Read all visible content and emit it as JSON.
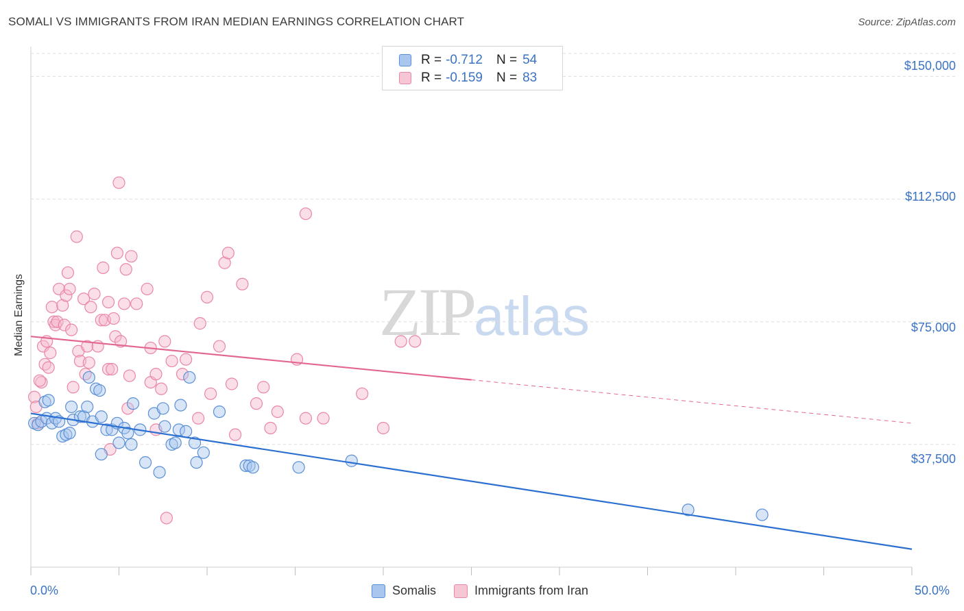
{
  "title": "SOMALI VS IMMIGRANTS FROM IRAN MEDIAN EARNINGS CORRELATION CHART",
  "source": "Source: ZipAtlas.com",
  "watermark": {
    "part1": "ZIP",
    "part2": "atlas"
  },
  "legend_top": [
    {
      "r_label": "R = ",
      "r_value": "-0.712",
      "n_label": "N = ",
      "n_value": "54"
    },
    {
      "r_label": "R = ",
      "r_value": "-0.159",
      "n_label": "N = ",
      "n_value": "83"
    }
  ],
  "colors": {
    "somali_fill": "#a9c6ee",
    "somali_stroke": "#5a8fd6",
    "somali_line": "#2b6fd1",
    "iran_fill": "#f6b9cb",
    "iran_stroke": "#ea86a5",
    "iran_line": "#e3668e",
    "tick_text": "#3a72c4",
    "grid": "#dcdcdc"
  },
  "chart_data": {
    "type": "scatter",
    "title": "SOMALI VS IMMIGRANTS FROM IRAN MEDIAN EARNINGS CORRELATION CHART",
    "xlabel": "",
    "ylabel": "Median Earnings",
    "xlim": [
      0,
      50
    ],
    "ylim": [
      0,
      157000
    ],
    "x_tick_labels": [
      "0.0%",
      "50.0%"
    ],
    "y_ticks": [
      37500,
      75000,
      112500,
      150000
    ],
    "y_tick_labels": [
      "$37,500",
      "$75,000",
      "$112,500",
      "$150,000"
    ],
    "grid": true,
    "legend_placement": "bottom",
    "series": [
      {
        "name": "Somalis",
        "r": -0.712,
        "n": 54,
        "trend": {
          "x": [
            0,
            50
          ],
          "y": [
            47000,
            5500
          ],
          "dashed_from": null
        },
        "points": [
          [
            0.2,
            44000
          ],
          [
            0.4,
            43500
          ],
          [
            0.6,
            44500
          ],
          [
            0.8,
            50500
          ],
          [
            0.9,
            45500
          ],
          [
            1.0,
            51000
          ],
          [
            1.2,
            44000
          ],
          [
            1.4,
            45500
          ],
          [
            1.6,
            44500
          ],
          [
            1.8,
            40000
          ],
          [
            2.0,
            40500
          ],
          [
            2.2,
            41000
          ],
          [
            2.4,
            45000
          ],
          [
            2.3,
            49000
          ],
          [
            2.8,
            46000
          ],
          [
            3.0,
            46000
          ],
          [
            3.2,
            49000
          ],
          [
            3.3,
            58000
          ],
          [
            3.5,
            44500
          ],
          [
            3.7,
            54500
          ],
          [
            3.9,
            54000
          ],
          [
            4.0,
            46000
          ],
          [
            4.3,
            42000
          ],
          [
            4.6,
            42000
          ],
          [
            4.9,
            44000
          ],
          [
            5.0,
            38000
          ],
          [
            5.3,
            42500
          ],
          [
            5.5,
            41000
          ],
          [
            5.7,
            37500
          ],
          [
            5.8,
            50000
          ],
          [
            6.2,
            42000
          ],
          [
            6.5,
            32000
          ],
          [
            7.0,
            47000
          ],
          [
            7.5,
            48500
          ],
          [
            7.3,
            29000
          ],
          [
            7.6,
            43000
          ],
          [
            8.0,
            37500
          ],
          [
            8.2,
            38000
          ],
          [
            8.4,
            42000
          ],
          [
            8.5,
            49500
          ],
          [
            8.8,
            41500
          ],
          [
            9.0,
            58000
          ],
          [
            9.3,
            38000
          ],
          [
            9.4,
            32000
          ],
          [
            9.8,
            35000
          ],
          [
            10.7,
            47500
          ],
          [
            12.2,
            31000
          ],
          [
            12.4,
            31000
          ],
          [
            12.6,
            30500
          ],
          [
            15.2,
            30500
          ],
          [
            18.2,
            32500
          ],
          [
            37.3,
            17500
          ],
          [
            41.5,
            16000
          ],
          [
            4.0,
            34500
          ]
        ]
      },
      {
        "name": "Immigrants from Iran",
        "r": -0.159,
        "n": 83,
        "trend": {
          "x": [
            0,
            50
          ],
          "y": [
            70500,
            44000
          ],
          "dashed_from": 25
        },
        "points": [
          [
            0.2,
            52000
          ],
          [
            0.3,
            49000
          ],
          [
            0.4,
            44000
          ],
          [
            0.6,
            56500
          ],
          [
            0.5,
            57000
          ],
          [
            0.7,
            67500
          ],
          [
            0.8,
            62000
          ],
          [
            0.9,
            69000
          ],
          [
            1.0,
            61000
          ],
          [
            1.1,
            65500
          ],
          [
            1.2,
            79500
          ],
          [
            1.3,
            75000
          ],
          [
            1.4,
            74000
          ],
          [
            1.5,
            75000
          ],
          [
            1.6,
            85000
          ],
          [
            1.8,
            80000
          ],
          [
            1.9,
            74000
          ],
          [
            2.0,
            83000
          ],
          [
            2.1,
            90000
          ],
          [
            2.2,
            85000
          ],
          [
            2.3,
            72500
          ],
          [
            2.4,
            55000
          ],
          [
            2.6,
            101000
          ],
          [
            2.7,
            66000
          ],
          [
            2.8,
            63000
          ],
          [
            3.0,
            82000
          ],
          [
            3.1,
            59000
          ],
          [
            3.2,
            67500
          ],
          [
            3.3,
            62500
          ],
          [
            3.4,
            79500
          ],
          [
            3.6,
            83500
          ],
          [
            3.8,
            67500
          ],
          [
            4.0,
            75500
          ],
          [
            4.1,
            91500
          ],
          [
            4.2,
            75500
          ],
          [
            4.4,
            60500
          ],
          [
            4.4,
            81000
          ],
          [
            4.5,
            36000
          ],
          [
            4.6,
            60500
          ],
          [
            4.7,
            76000
          ],
          [
            4.8,
            70500
          ],
          [
            4.9,
            96000
          ],
          [
            5.0,
            117500
          ],
          [
            5.1,
            69000
          ],
          [
            5.3,
            80500
          ],
          [
            5.4,
            91000
          ],
          [
            5.5,
            48500
          ],
          [
            5.6,
            58500
          ],
          [
            5.7,
            95000
          ],
          [
            6.0,
            80500
          ],
          [
            6.6,
            85000
          ],
          [
            6.8,
            56500
          ],
          [
            7.1,
            59000
          ],
          [
            7.4,
            54500
          ],
          [
            7.6,
            69000
          ],
          [
            7.7,
            15000
          ],
          [
            8.0,
            63000
          ],
          [
            8.6,
            59000
          ],
          [
            8.8,
            63500
          ],
          [
            9.5,
            45500
          ],
          [
            9.6,
            74500
          ],
          [
            10.0,
            82500
          ],
          [
            10.2,
            53000
          ],
          [
            10.7,
            67500
          ],
          [
            11.0,
            93000
          ],
          [
            11.2,
            96000
          ],
          [
            11.4,
            56000
          ],
          [
            11.6,
            40500
          ],
          [
            12.0,
            86500
          ],
          [
            12.8,
            50000
          ],
          [
            13.2,
            55000
          ],
          [
            13.6,
            42500
          ],
          [
            14.0,
            47500
          ],
          [
            15.1,
            63500
          ],
          [
            15.6,
            45500
          ],
          [
            15.6,
            108000
          ],
          [
            16.6,
            45500
          ],
          [
            18.8,
            53000
          ],
          [
            20.0,
            42500
          ],
          [
            21.0,
            69000
          ],
          [
            21.8,
            69000
          ],
          [
            6.8,
            67000
          ],
          [
            7.1,
            42000
          ]
        ]
      }
    ]
  }
}
